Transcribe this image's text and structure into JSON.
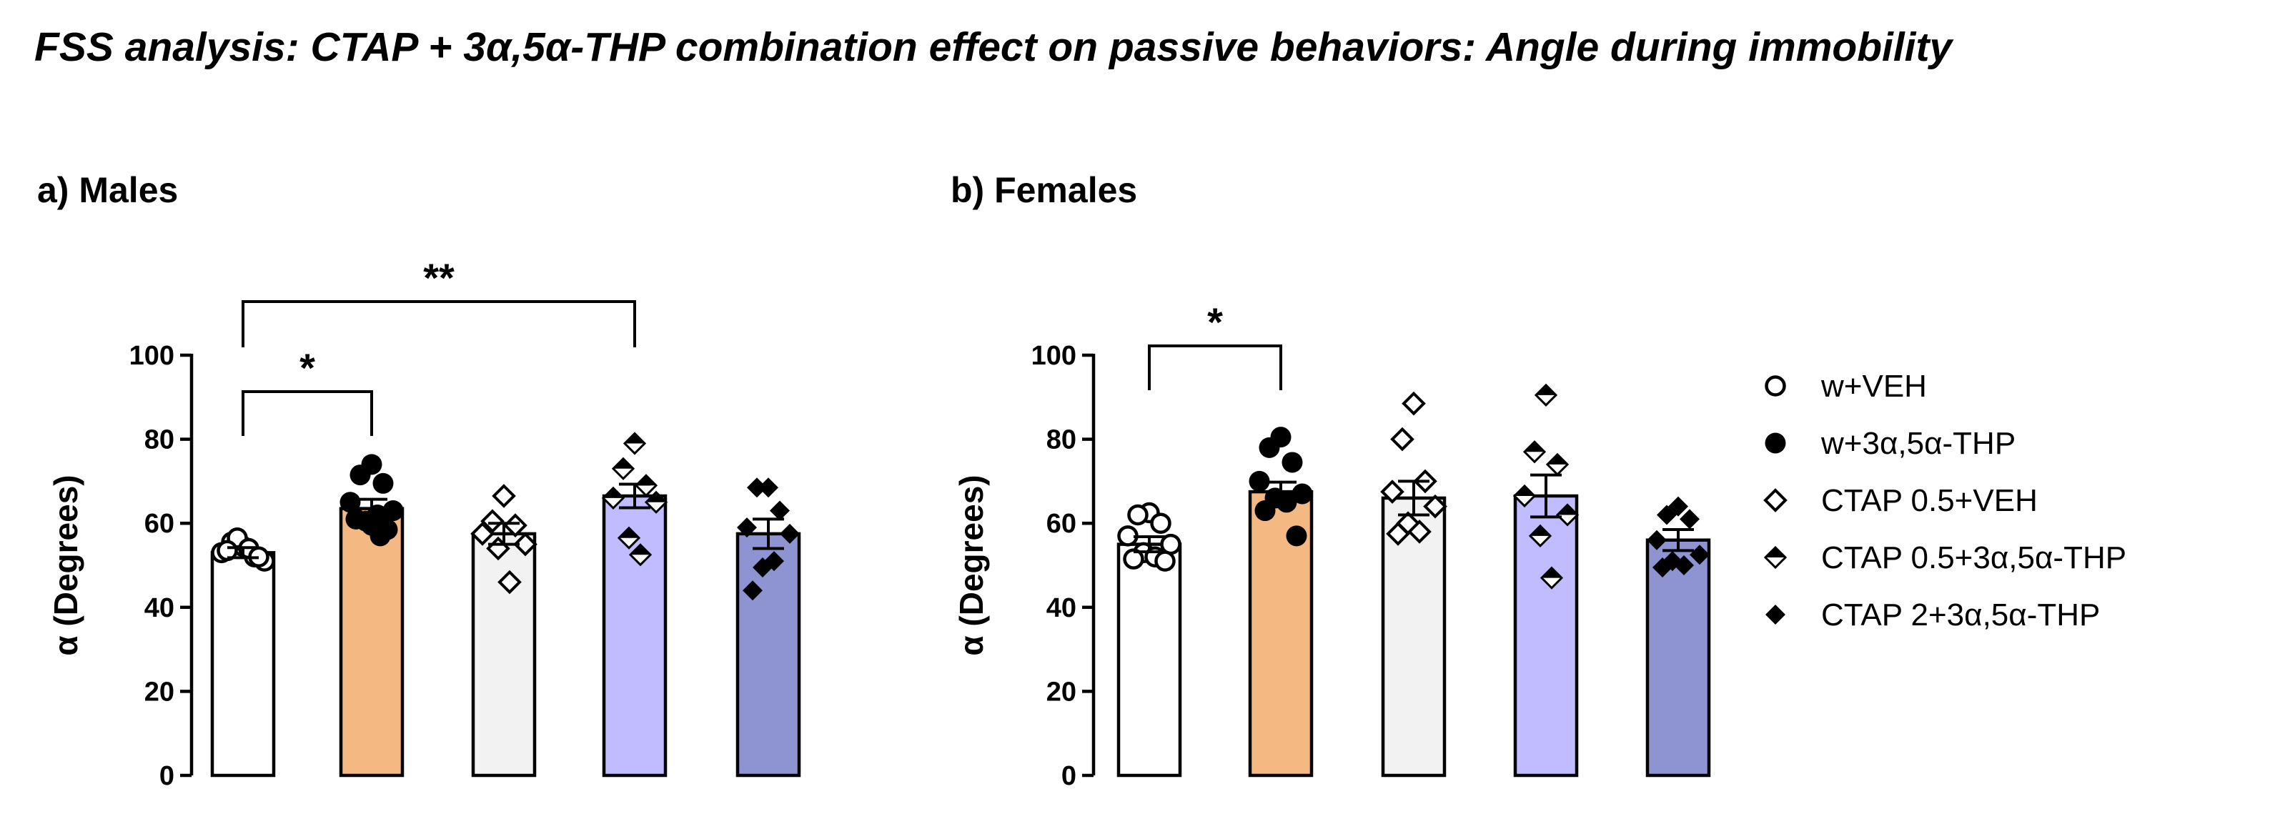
{
  "title": "FSS analysis: CTAP + 3α,5α-THP combination effect on passive behaviors: Angle during immobility",
  "chart_data": [
    {
      "type": "bar",
      "panel_title": "a) Males",
      "ylabel": "α (Degrees)",
      "ylim": [
        0,
        100
      ],
      "yticks": [
        0,
        20,
        40,
        60,
        80,
        100
      ],
      "categories": [
        "w+VEH",
        "w+3α,5α-THP",
        "CTAP 0.5+VEH",
        "CTAP 0.5+3α,5α-THP",
        "CTAP 2+3α,5α-THP"
      ],
      "values": [
        53,
        63.5,
        57.5,
        66.5,
        57.5
      ],
      "sem": [
        1.2,
        2.2,
        2.5,
        2.8,
        3.5
      ],
      "points": [
        [
          54.5,
          55.5,
          52,
          53,
          51,
          56.5,
          54,
          53.5,
          52
        ],
        [
          74,
          71.5,
          69.5,
          65,
          63,
          60.5,
          62,
          61,
          58.5,
          59.5,
          57
        ],
        [
          66.5,
          60.5,
          59.5,
          57.5,
          55,
          54,
          46
        ],
        [
          79,
          73,
          69,
          66,
          65,
          56.5,
          52.5
        ],
        [
          68.5,
          68.5,
          63,
          59,
          57.5,
          49.5,
          51,
          44
        ]
      ],
      "significance": [
        {
          "from": "w+VEH",
          "to": "w+3α,5α-THP",
          "label": "*"
        },
        {
          "from": "w+VEH",
          "to": "CTAP 0.5+3α,5α-THP",
          "label": "**"
        }
      ]
    },
    {
      "type": "bar",
      "panel_title": "b) Females",
      "ylabel": "α (Degrees)",
      "ylim": [
        0,
        100
      ],
      "yticks": [
        0,
        20,
        40,
        60,
        80,
        100
      ],
      "categories": [
        "w+VEH",
        "w+3α,5α-THP",
        "CTAP 0.5+VEH",
        "CTAP 0.5+3α,5α-THP",
        "CTAP 2+3α,5α-THP"
      ],
      "values": [
        55,
        67.5,
        66,
        66.5,
        56
      ],
      "sem": [
        1.8,
        2.3,
        4.0,
        5.0,
        2.5
      ],
      "points": [
        [
          62.5,
          62,
          60,
          57,
          55,
          53,
          52,
          51.5,
          51
        ],
        [
          80.5,
          78,
          74.5,
          70,
          67,
          66,
          65,
          63,
          57
        ],
        [
          88.5,
          80,
          70,
          67.5,
          64,
          60,
          58,
          57.5
        ],
        [
          90.5,
          77,
          74,
          66.5,
          62,
          57,
          47
        ],
        [
          64,
          62,
          61,
          56,
          52.5,
          51,
          50,
          49.5
        ]
      ],
      "significance": [
        {
          "from": "w+VEH",
          "to": "w+3α,5α-THP",
          "label": "*"
        }
      ]
    }
  ],
  "legend": [
    {
      "label": "w+VEH",
      "marker": "circle-open"
    },
    {
      "label": "w+3α,5α-THP",
      "marker": "circle-filled"
    },
    {
      "label": "CTAP 0.5+VEH",
      "marker": "diamond-open"
    },
    {
      "label": "CTAP 0.5+3α,5α-THP",
      "marker": "diamond-half"
    },
    {
      "label": "CTAP 2+3α,5α-THP",
      "marker": "diamond-filled"
    }
  ],
  "colors": {
    "w+VEH": "#ffffff",
    "w+3α,5α-THP": "#f4b883",
    "CTAP 0.5+VEH": "#f2f2f2",
    "CTAP 0.5+3α,5α-THP": "#c0bcff",
    "CTAP 2+3α,5α-THP": "#8e94d2"
  }
}
